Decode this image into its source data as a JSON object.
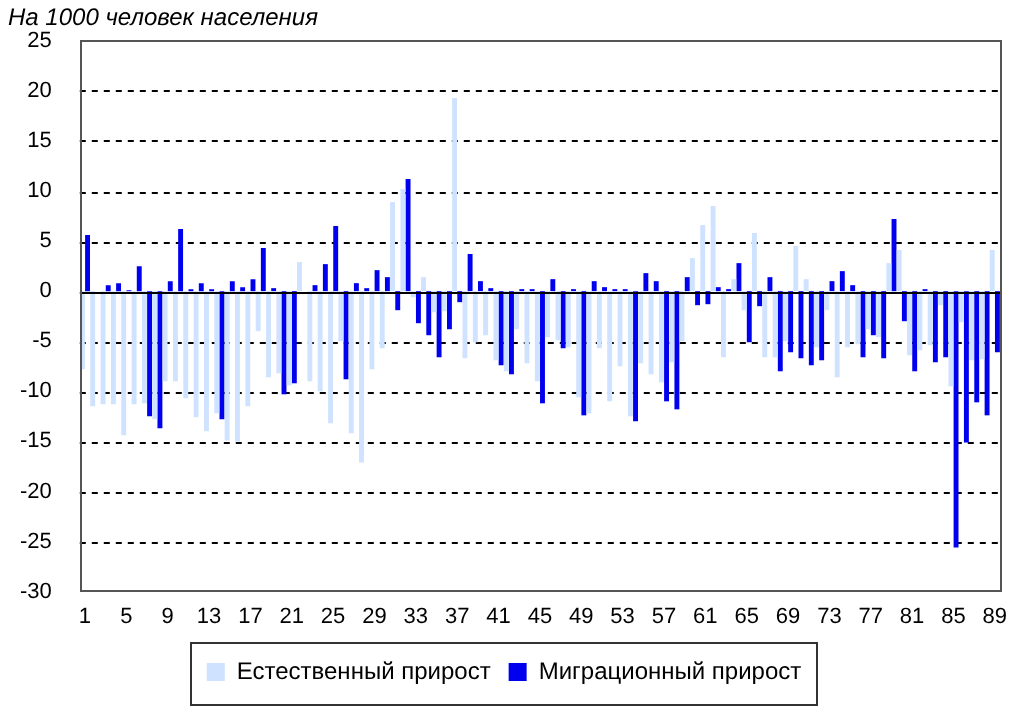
{
  "chart_data": {
    "type": "bar",
    "title": "На 1000 человек населения",
    "categories": [
      "1",
      null,
      null,
      null,
      "5",
      null,
      null,
      null,
      "9",
      null,
      null,
      null,
      "13",
      null,
      null,
      null,
      "17",
      null,
      null,
      null,
      "21",
      null,
      null,
      null,
      "25",
      null,
      null,
      null,
      "29",
      null,
      null,
      null,
      "33",
      null,
      null,
      null,
      "37",
      null,
      null,
      null,
      "41",
      null,
      null,
      null,
      "45",
      null,
      null,
      null,
      "49",
      null,
      null,
      null,
      "53",
      null,
      null,
      null,
      "57",
      null,
      null,
      null,
      "61",
      null,
      null,
      null,
      "65",
      null,
      null,
      null,
      "69",
      null,
      null,
      null,
      "73",
      null,
      null,
      null,
      "77",
      null,
      null,
      null,
      "81",
      null,
      null,
      null,
      "85",
      null,
      null,
      null,
      "89"
    ],
    "series": [
      {
        "name": "Естественный прирост",
        "color": "#cfe2ff",
        "values": [
          -7.8,
          -11.5,
          -11.3,
          -11.3,
          -14.4,
          -11.3,
          -11.2,
          -12.8,
          -9,
          -9,
          -10.7,
          -12.6,
          -14,
          -12.2,
          -14.9,
          -15,
          -11.5,
          -4,
          -8.6,
          -8.2,
          -9.4,
          2.9,
          -9,
          -10,
          -13.2,
          -5,
          -14.2,
          -17.1,
          -7.8,
          -5.7,
          8.9,
          10.2,
          -0.6,
          1.4,
          -2.1,
          -2,
          19.3,
          -6.7,
          -5.1,
          -4.4,
          -6.9,
          -8,
          -3.8,
          -7.2,
          -9,
          -4.6,
          -4.9,
          -5.6,
          -10.6,
          -12.2,
          -5.7,
          -11,
          -7.5,
          -12.5,
          -7.2,
          -8.3,
          -9.1,
          -7.1,
          -5,
          3.3,
          6.6,
          8.5,
          -6.6,
          1.2,
          -1.9,
          5.8,
          -6.6,
          -6.6,
          -5,
          4.5,
          1.2,
          -5.6,
          -1.9,
          -8.6,
          -5.6,
          -5.3,
          -3.8,
          -4.6,
          2.8,
          4.1,
          -6.4,
          -5.9,
          -5.4,
          -1.4,
          -9.5,
          -3.1,
          -6.9,
          -6.8,
          4.1
        ]
      },
      {
        "name": "Миграционный прирост",
        "color": "#0000ee",
        "values": [
          5.6,
          null,
          0.6,
          0.8,
          0.1,
          2.5,
          -12.5,
          -13.7,
          1,
          6.2,
          0.2,
          0.8,
          0.2,
          -12.8,
          1,
          0.4,
          1.2,
          4.3,
          0.3,
          -10.3,
          -9.2,
          null,
          0.6,
          2.7,
          6.5,
          -8.8,
          0.8,
          0.3,
          2.1,
          1.4,
          -1.9,
          11.2,
          -3.2,
          -4.4,
          -6.6,
          -3.8,
          -1.1,
          3.7,
          1,
          0.3,
          -7.4,
          -8.3,
          0.2,
          0.2,
          -11.2,
          1.2,
          -5.7,
          0.2,
          -12.4,
          1,
          0.4,
          0.2,
          0.2,
          -13,
          1.8,
          1,
          -11,
          -11.8,
          1.4,
          -1.4,
          -1.3,
          0.4,
          0.2,
          2.8,
          -5.1,
          -1.5,
          1.4,
          -8,
          -6.1,
          -6.7,
          -7.4,
          -6.9,
          1,
          2,
          0.6,
          -6.6,
          -4.4,
          -6.7,
          7.2,
          -3,
          -8,
          0.2,
          -7.1,
          -6.6,
          -25.6,
          -15.1,
          -11.1,
          -12.4,
          -6.1
        ]
      }
    ],
    "ylim": [
      -30,
      25
    ],
    "yticks": [
      -30,
      -25,
      -20,
      -15,
      -10,
      -5,
      0,
      5,
      10,
      15,
      20,
      25
    ],
    "grid": "y",
    "legend": "bottom"
  }
}
